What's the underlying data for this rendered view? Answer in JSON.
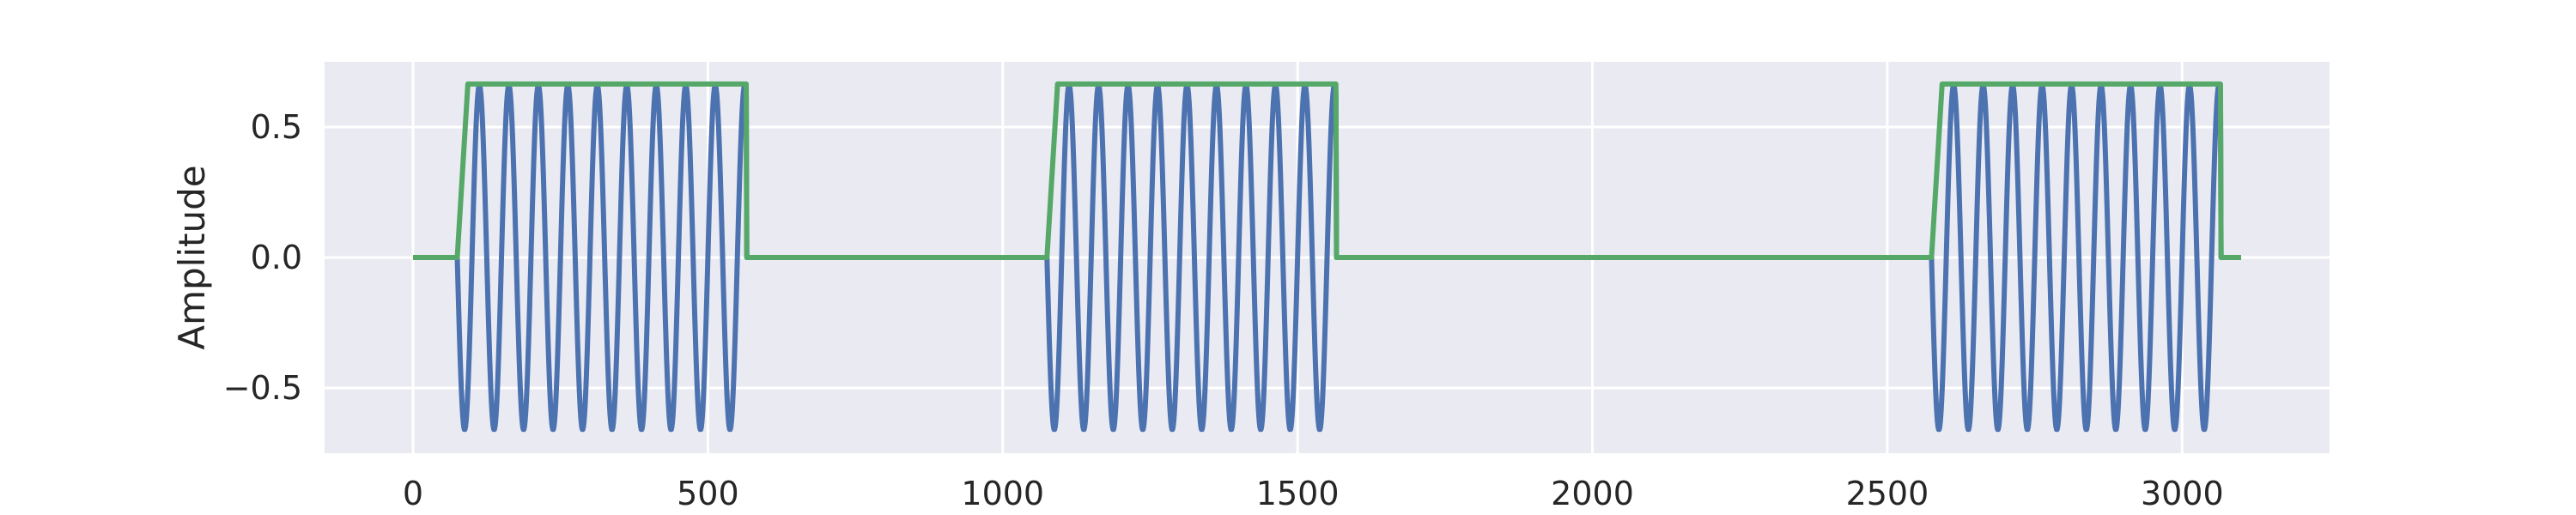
{
  "chart_data": {
    "type": "line",
    "title": "",
    "xlabel": "",
    "ylabel": "Amplitude",
    "xlim": [
      -150,
      3250
    ],
    "ylim": [
      -0.75,
      0.75
    ],
    "xticks": [
      0,
      500,
      1000,
      1500,
      2000,
      2500,
      3000
    ],
    "yticks": [
      0.5,
      0.0,
      -0.5
    ],
    "xtick_labels": [
      "0",
      "500",
      "1000",
      "1500",
      "2000",
      "2500",
      "3000"
    ],
    "ytick_labels": [
      "0.5",
      "0.0",
      "−0.5"
    ],
    "grid": true,
    "background": "#eaeaf2",
    "grid_color": "#ffffff",
    "series": [
      {
        "kind": "oscillation",
        "color": "#4c72b0",
        "bursts": [
          {
            "start": 75,
            "end": 565,
            "amplitude": 0.66,
            "period": 50
          },
          {
            "start": 1075,
            "end": 1565,
            "amplitude": 0.66,
            "period": 50
          },
          {
            "start": 2575,
            "end": 3065,
            "amplitude": 0.66,
            "period": 50
          }
        ],
        "x_range": [
          0,
          3100
        ]
      },
      {
        "kind": "envelope",
        "color": "#55a868",
        "bursts": [
          {
            "start": 75,
            "end": 565,
            "level": 0.665
          },
          {
            "start": 1075,
            "end": 1565,
            "level": 0.665
          },
          {
            "start": 2575,
            "end": 3065,
            "level": 0.665
          }
        ],
        "x_range": [
          0,
          3100
        ]
      }
    ]
  }
}
